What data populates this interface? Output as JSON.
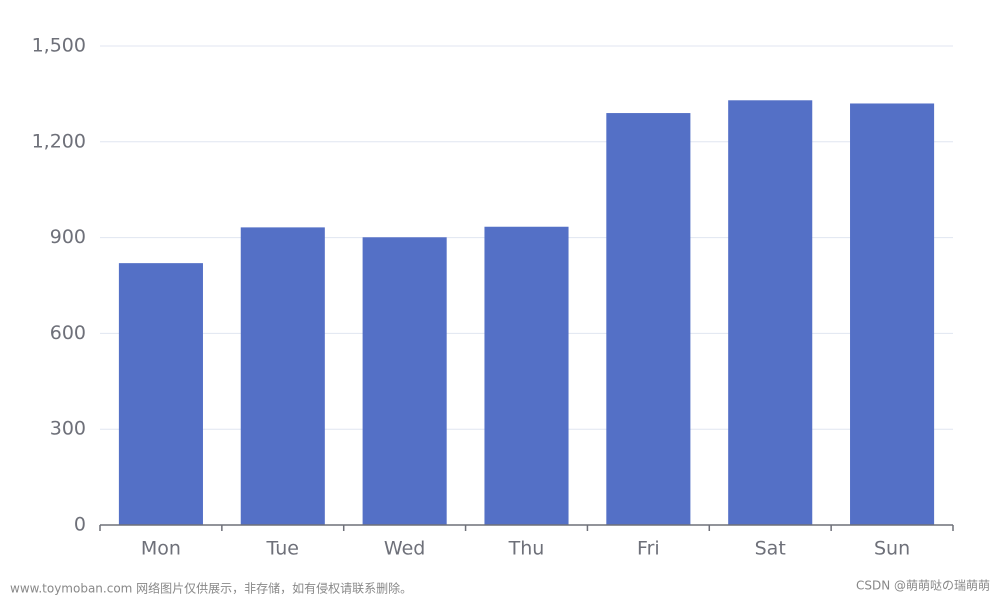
{
  "chart_data": {
    "type": "bar",
    "categories": [
      "Mon",
      "Tue",
      "Wed",
      "Thu",
      "Fri",
      "Sat",
      "Sun"
    ],
    "values": [
      820,
      932,
      901,
      934,
      1290,
      1330,
      1320
    ],
    "color": "#5470c6",
    "ylim": [
      0,
      1500
    ],
    "yticks": [
      0,
      300,
      600,
      900,
      {
        "value": 1200,
        "label": "1,200"
      },
      {
        "value": 1500,
        "label": "1,500"
      }
    ],
    "grid": true
  },
  "watermark_left": "www.toymoban.com 网络图片仅供展示，非存储，如有侵权请联系删除。",
  "watermark_right": "CSDN @萌萌哒の瑞萌萌"
}
